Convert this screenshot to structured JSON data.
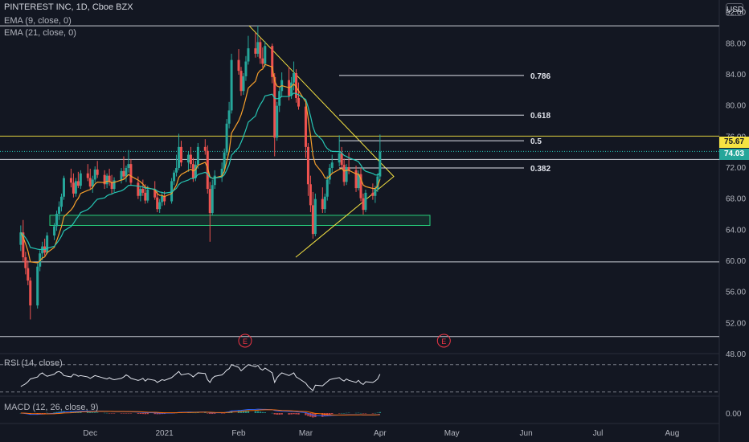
{
  "window": {
    "symbol_line": "PINTEREST INC, 1D, Cboe BZX",
    "currency": "USD"
  },
  "indicators": {
    "ema9": "EMA (9, close, 0)",
    "ema21": "EMA (21, close, 0)",
    "rsi": "RSI (14, close)",
    "macd": "MACD (12, 26, close, 9)"
  },
  "colors": {
    "background": "#131722",
    "up_candle": "#26a69a",
    "down_candle": "#ef5350",
    "ema9": "#f7a02c",
    "ema21": "#26c6b4",
    "level_lines": "#e0e3eb",
    "triangle": "#f5e342",
    "zone": "#26d07c",
    "earnings": "#f23645"
  },
  "price_badges": {
    "last_close": "75.67",
    "current": "74.03"
  },
  "earnings_markers": [
    "E",
    "E"
  ],
  "chart_data": {
    "type": "candlestick",
    "title": "PINTEREST INC, 1D, Cboe BZX",
    "ylim": [
      48,
      93
    ],
    "y_ticks": [
      "92.00",
      "88.00",
      "84.00",
      "80.00",
      "76.00",
      "72.00",
      "68.00",
      "64.00",
      "60.00",
      "56.00",
      "52.00",
      "48.00"
    ],
    "x_ticks": [
      "Dec",
      "2021",
      "Feb",
      "Mar",
      "Apr",
      "May",
      "Jun",
      "Jul",
      "Aug"
    ],
    "horizontal_levels": [
      90.2,
      76.0,
      73.0,
      59.8,
      50.2
    ],
    "fib_levels": [
      {
        "label": "0.786",
        "value": 83.8
      },
      {
        "label": "0.618",
        "value": 78.7
      },
      {
        "label": "0.5",
        "value": 75.4
      },
      {
        "label": "0.382",
        "value": 71.9
      }
    ],
    "support_zone": [
      64.5,
      65.8
    ],
    "candles_start": "2020-11-02",
    "candles": [
      [
        62.0,
        64.5,
        61.2,
        63.6
      ],
      [
        63.6,
        65.2,
        59.8,
        60.4
      ],
      [
        60.4,
        61.1,
        58.2,
        59.0
      ],
      [
        59.0,
        60.0,
        56.8,
        57.4
      ],
      [
        57.4,
        57.8,
        52.4,
        54.2
      ],
      [
        54.2,
        59.6,
        53.8,
        59.2
      ],
      [
        59.2,
        61.3,
        58.6,
        60.9
      ],
      [
        60.9,
        62.4,
        60.0,
        61.8
      ],
      [
        61.8,
        62.8,
        60.6,
        61.0
      ],
      [
        61.0,
        63.6,
        60.8,
        63.2
      ],
      [
        63.2,
        64.8,
        62.6,
        64.4
      ],
      [
        64.4,
        66.4,
        63.8,
        66.0
      ],
      [
        66.0,
        67.6,
        65.2,
        66.9
      ],
      [
        66.9,
        68.6,
        66.3,
        68.2
      ],
      [
        68.2,
        70.9,
        67.8,
        70.6
      ],
      [
        70.6,
        71.8,
        69.4,
        70.0
      ],
      [
        70.0,
        71.2,
        68.1,
        68.6
      ],
      [
        68.6,
        70.6,
        68.2,
        70.2
      ],
      [
        70.2,
        71.4,
        69.3,
        69.6
      ],
      [
        69.6,
        71.6,
        69.2,
        71.2
      ],
      [
        71.2,
        72.4,
        70.2,
        70.6
      ],
      [
        70.6,
        71.8,
        69.1,
        69.5
      ],
      [
        69.5,
        70.9,
        68.7,
        70.4
      ],
      [
        70.4,
        72.1,
        70.0,
        71.7
      ],
      [
        71.7,
        72.8,
        70.6,
        71.0
      ],
      [
        71.0,
        71.6,
        69.2,
        69.8
      ],
      [
        69.8,
        71.2,
        69.3,
        70.9
      ],
      [
        70.9,
        71.8,
        69.6,
        70.1
      ],
      [
        70.1,
        71.0,
        68.6,
        69.2
      ],
      [
        69.2,
        70.7,
        68.8,
        70.3
      ],
      [
        70.3,
        71.9,
        69.9,
        71.5
      ],
      [
        71.5,
        73.4,
        70.4,
        70.8
      ],
      [
        70.8,
        72.2,
        70.1,
        71.9
      ],
      [
        71.9,
        74.2,
        71.3,
        72.4
      ],
      [
        72.4,
        73.0,
        69.6,
        70.0
      ],
      [
        70.0,
        70.8,
        67.9,
        68.3
      ],
      [
        68.3,
        69.6,
        67.6,
        69.2
      ],
      [
        69.2,
        70.4,
        68.3,
        68.7
      ],
      [
        68.7,
        69.8,
        67.3,
        67.7
      ],
      [
        67.7,
        69.6,
        67.4,
        69.1
      ],
      [
        69.1,
        70.2,
        67.8,
        68.1
      ],
      [
        68.1,
        68.9,
        66.2,
        66.6
      ],
      [
        66.6,
        67.9,
        66.1,
        67.5
      ],
      [
        67.5,
        68.8,
        67.0,
        68.3
      ],
      [
        68.3,
        68.9,
        67.1,
        67.6
      ],
      [
        67.6,
        70.6,
        67.3,
        70.2
      ],
      [
        70.2,
        71.6,
        69.7,
        71.3
      ],
      [
        71.3,
        73.6,
        70.8,
        71.9
      ],
      [
        71.9,
        76.3,
        71.6,
        74.6
      ],
      [
        74.6,
        75.4,
        72.1,
        72.6
      ],
      [
        72.6,
        74.0,
        71.4,
        73.6
      ],
      [
        73.6,
        74.6,
        71.9,
        72.4
      ],
      [
        72.4,
        73.2,
        70.1,
        70.6
      ],
      [
        70.6,
        72.8,
        70.2,
        72.3
      ],
      [
        72.3,
        75.1,
        71.8,
        74.6
      ],
      [
        74.6,
        75.6,
        73.6,
        74.1
      ],
      [
        74.1,
        74.8,
        68.6,
        69.2
      ],
      [
        69.2,
        70.1,
        62.4,
        66.1
      ],
      [
        66.1,
        70.4,
        65.8,
        69.7
      ],
      [
        69.7,
        71.6,
        69.2,
        70.9
      ],
      [
        70.9,
        72.6,
        70.1,
        71.8
      ],
      [
        71.8,
        74.4,
        71.3,
        73.9
      ],
      [
        73.9,
        78.2,
        73.5,
        77.6
      ],
      [
        77.6,
        80.4,
        77.0,
        79.3
      ],
      [
        79.3,
        86.6,
        78.9,
        85.8
      ],
      [
        85.8,
        87.2,
        83.9,
        84.4
      ],
      [
        84.4,
        84.9,
        81.2,
        81.8
      ],
      [
        81.8,
        84.1,
        81.3,
        83.7
      ],
      [
        83.7,
        86.3,
        83.1,
        85.6
      ],
      [
        85.6,
        88.9,
        85.2,
        87.3
      ],
      [
        87.3,
        89.3,
        86.1,
        86.6
      ],
      [
        86.6,
        90.2,
        86.2,
        88.1
      ],
      [
        88.1,
        88.6,
        85.3,
        86.0
      ],
      [
        86.0,
        87.4,
        84.8,
        85.3
      ],
      [
        85.3,
        88.2,
        84.9,
        87.6
      ],
      [
        87.6,
        87.9,
        82.8,
        83.6
      ],
      [
        83.6,
        84.1,
        73.4,
        75.8
      ],
      [
        75.8,
        80.4,
        75.4,
        79.9
      ],
      [
        79.9,
        82.4,
        79.1,
        81.8
      ],
      [
        81.8,
        84.2,
        81.1,
        83.2
      ],
      [
        83.2,
        84.9,
        80.6,
        81.2
      ],
      [
        81.2,
        83.6,
        80.8,
        82.9
      ],
      [
        82.9,
        85.6,
        81.9,
        84.1
      ],
      [
        84.1,
        84.6,
        80.3,
        80.9
      ],
      [
        80.9,
        82.9,
        79.4,
        79.8
      ],
      [
        79.8,
        80.3,
        73.2,
        74.6
      ],
      [
        74.6,
        75.1,
        68.3,
        69.8
      ],
      [
        69.8,
        70.9,
        66.2,
        67.1
      ],
      [
        67.1,
        68.8,
        62.8,
        63.4
      ],
      [
        63.4,
        68.6,
        63.1,
        67.9
      ],
      [
        67.9,
        69.4,
        66.1,
        66.6
      ],
      [
        66.6,
        68.6,
        66.1,
        68.2
      ],
      [
        68.2,
        70.9,
        67.7,
        70.4
      ],
      [
        70.4,
        72.4,
        69.8,
        71.9
      ],
      [
        71.9,
        73.6,
        71.2,
        72.6
      ],
      [
        72.6,
        76.1,
        72.1,
        73.8
      ],
      [
        73.8,
        74.6,
        71.8,
        72.3
      ],
      [
        72.3,
        73.1,
        69.6,
        70.1
      ],
      [
        70.1,
        72.4,
        69.7,
        72.0
      ],
      [
        72.0,
        73.9,
        71.1,
        71.6
      ],
      [
        71.6,
        72.2,
        68.8,
        69.3
      ],
      [
        69.3,
        71.6,
        69.0,
        71.1
      ],
      [
        71.1,
        71.9,
        67.6,
        68.0
      ],
      [
        68.0,
        68.6,
        65.9,
        66.5
      ],
      [
        66.5,
        69.1,
        66.2,
        68.7
      ],
      [
        68.7,
        69.9,
        67.8,
        68.3
      ],
      [
        68.3,
        69.6,
        67.4,
        69.2
      ],
      [
        69.2,
        71.2,
        68.8,
        70.8
      ],
      [
        70.8,
        76.2,
        70.4,
        74.0
      ]
    ],
    "ema_lengths": [
      9,
      21
    ],
    "rsi": {
      "name": "RSI (14, close)",
      "levels": [
        70,
        30
      ],
      "values": [
        38,
        40,
        42,
        45,
        49,
        52,
        56,
        58,
        55,
        53,
        56,
        59,
        60,
        58,
        54,
        52,
        56,
        55,
        53,
        54,
        52,
        50,
        52,
        54,
        53,
        50,
        49,
        51,
        49,
        48,
        50,
        52,
        55,
        53,
        50,
        47,
        48,
        50,
        46,
        49,
        47,
        44,
        46,
        48,
        47,
        51,
        54,
        57,
        60,
        55,
        57,
        55,
        52,
        55,
        58,
        57,
        48,
        44,
        50,
        53,
        55,
        58,
        62,
        64,
        70,
        66,
        61,
        64,
        67,
        70,
        67,
        69,
        64,
        62,
        65,
        58,
        44,
        51,
        55,
        58,
        54,
        56,
        58,
        52,
        50,
        43,
        38,
        35,
        32,
        40,
        39,
        42,
        45,
        48,
        49,
        51,
        48,
        46,
        49,
        47,
        44,
        47,
        43,
        41,
        45,
        44,
        46,
        49,
        56
      ]
    },
    "macd": {
      "name": "MACD (12, 26, close, 9)",
      "zero_tick": "0.00"
    }
  }
}
